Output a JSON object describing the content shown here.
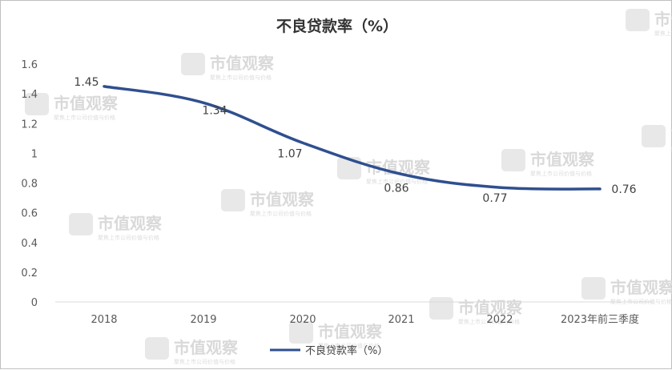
{
  "watermark": {
    "brand": "市值观察",
    "tagline": "聚焦上市公司价值与价格"
  },
  "chart_data": {
    "type": "line",
    "title": "不良贷款率（%）",
    "categories": [
      "2018",
      "2019",
      "2020",
      "2021",
      "2022",
      "2023年前三季度"
    ],
    "series": [
      {
        "name": "不良贷款率（%）",
        "values": [
          1.45,
          1.34,
          1.07,
          0.86,
          0.77,
          0.76
        ],
        "color": "#2f4f8f"
      }
    ],
    "y_ticks": [
      "0",
      "0.2",
      "0.4",
      "0.6",
      "0.8",
      "1",
      "1.2",
      "1.4",
      "1.6"
    ],
    "ylim": [
      0,
      1.6
    ],
    "data_labels": [
      "1.45",
      "1.34",
      "1.07",
      "0.86",
      "0.77",
      "0.76"
    ],
    "grid": false,
    "legend_position": "bottom",
    "xlabel": "",
    "ylabel": ""
  }
}
